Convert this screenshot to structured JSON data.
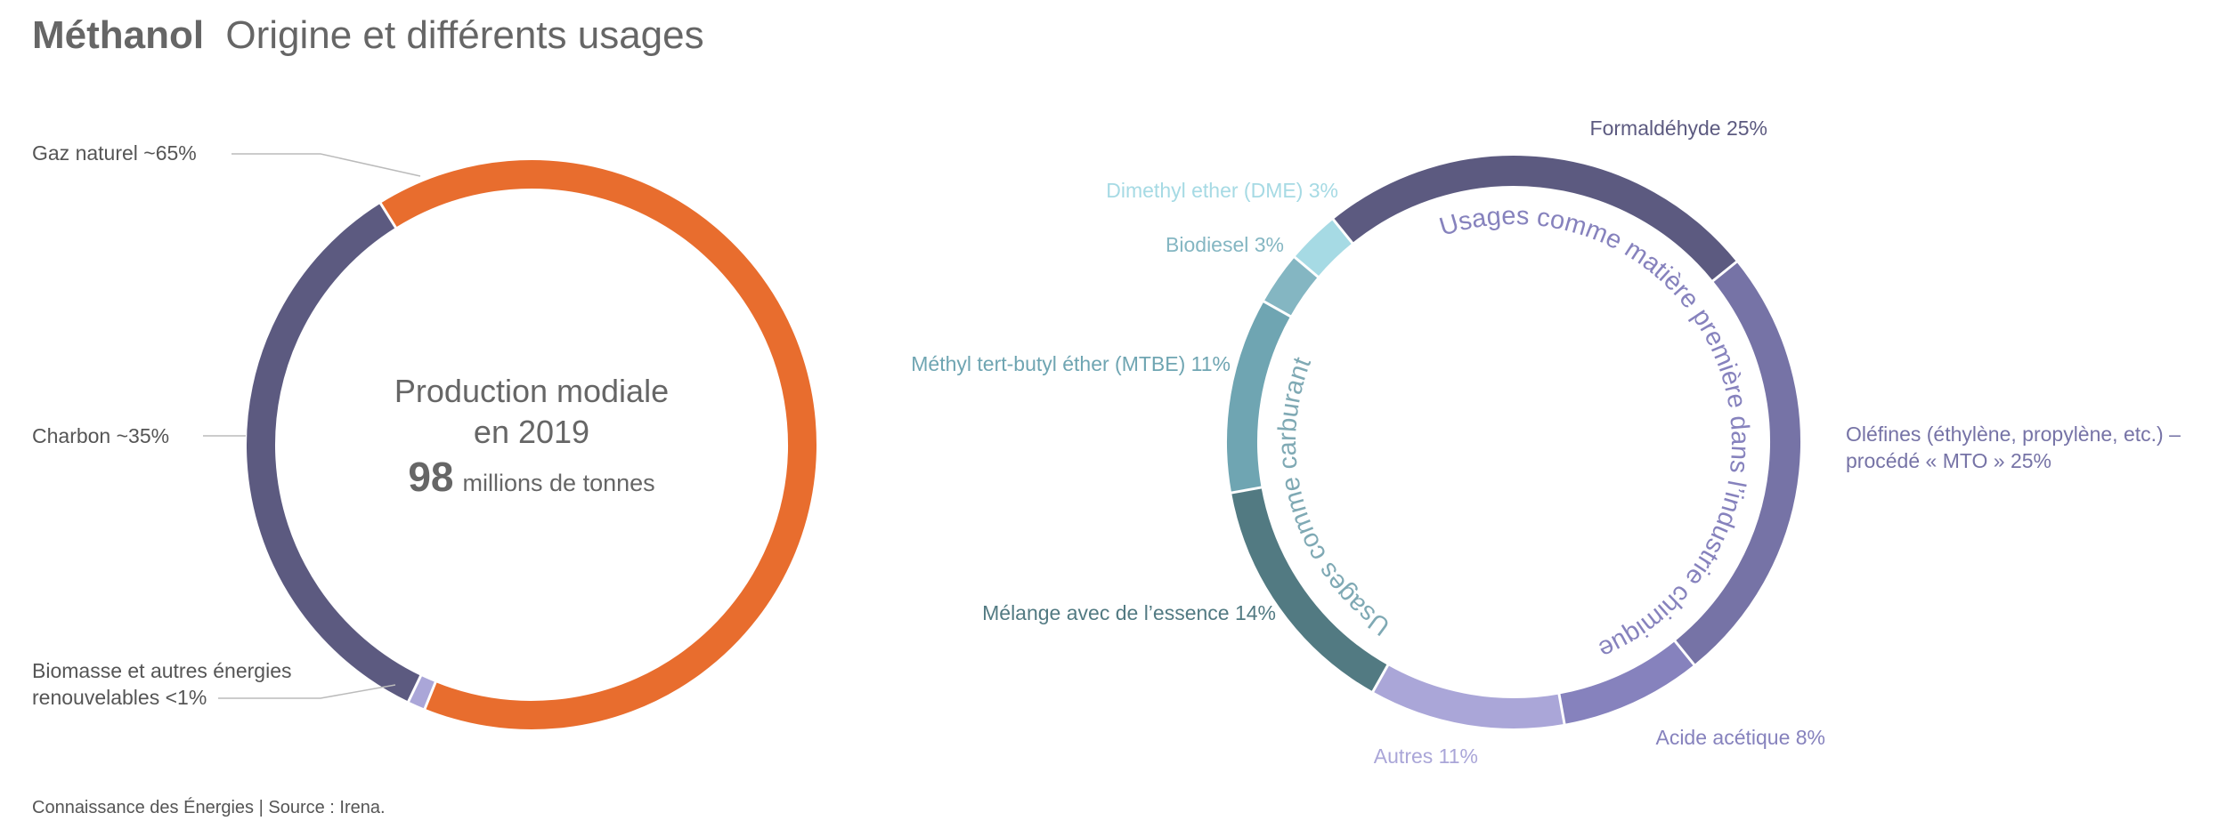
{
  "header": {
    "title_bold": "Méthanol",
    "title_rest": "Origine et différents usages"
  },
  "footer": {
    "source": "Connaissance des Énergies | Source : Irena."
  },
  "colors": {
    "title": "#666666",
    "label": "#555555",
    "leader": "#bbbbbb",
    "center_text": "#666666"
  },
  "chart_data": [
    {
      "type": "pie",
      "variant": "donut",
      "title": "",
      "center_text": {
        "line1": "Production modiale",
        "line2": "en 2019",
        "value": "98",
        "unit": "millions de tonnes"
      },
      "slices": [
        {
          "label": "Gaz naturel ~65%",
          "value": 65,
          "color": "#e86d2e",
          "label_lines": [
            "Gaz naturel ~65%"
          ]
        },
        {
          "label": "Biomasse et autres énergies renouvelables <1%",
          "value": 1,
          "color": "#aaa6d8",
          "label_lines": [
            "Biomasse et autres énergies",
            "renouvelables <1%"
          ]
        },
        {
          "label": "Charbon ~35%",
          "value": 34,
          "color": "#5c5a80",
          "label_lines": [
            "Charbon ~35%"
          ]
        }
      ]
    },
    {
      "type": "pie",
      "variant": "donut",
      "title": "",
      "slices": [
        {
          "label": "Formaldéhyde 25%",
          "value": 25,
          "color": "#5c5a80",
          "label_color": "#5c5a80",
          "label_lines": [
            "Formaldéhyde 25%"
          ]
        },
        {
          "label": "Oléfines (éthylène, propylène, etc.) – procédé « MTO » 25%",
          "value": 25,
          "color": "#7673a6",
          "label_color": "#7673a6",
          "label_lines": [
            "Oléfines (éthylène, propylène, etc.) –",
            "procédé « MTO » 25%"
          ]
        },
        {
          "label": "Acide acétique 8%",
          "value": 8,
          "color": "#8682bd",
          "label_color": "#8682bd",
          "label_lines": [
            "Acide acétique 8%"
          ]
        },
        {
          "label": "Autres 11%",
          "value": 11,
          "color": "#aaa6d8",
          "label_color": "#aaa6d8",
          "label_lines": [
            "Autres 11%"
          ]
        },
        {
          "label": "Mélange avec de l’essence 14%",
          "value": 14,
          "color": "#527a82",
          "label_color": "#527a82",
          "label_lines": [
            "Mélange avec de l’essence 14%"
          ]
        },
        {
          "label": "Méthyl tert-butyl éther (MTBE) 11%",
          "value": 11,
          "color": "#6fa5b2",
          "label_color": "#6fa5b2",
          "label_lines": [
            "Méthyl tert-butyl éther (MTBE) 11%"
          ]
        },
        {
          "label": "Biodiesel 3%",
          "value": 3,
          "color": "#84b6c2",
          "label_color": "#84b6c2",
          "label_lines": [
            "Biodiesel 3%"
          ]
        },
        {
          "label": "Dimethyl ether (DME) 3%",
          "value": 3,
          "color": "#a6dae4",
          "label_color": "#a6dae4",
          "label_lines": [
            "Dimethyl ether (DME) 3%"
          ]
        }
      ],
      "group_labels": [
        {
          "text": "Usages comme matière première dans l’industrie chimique",
          "color": "#8682bd"
        },
        {
          "text": "Usages comme carburant",
          "color": "#7fa9b4"
        }
      ]
    }
  ]
}
